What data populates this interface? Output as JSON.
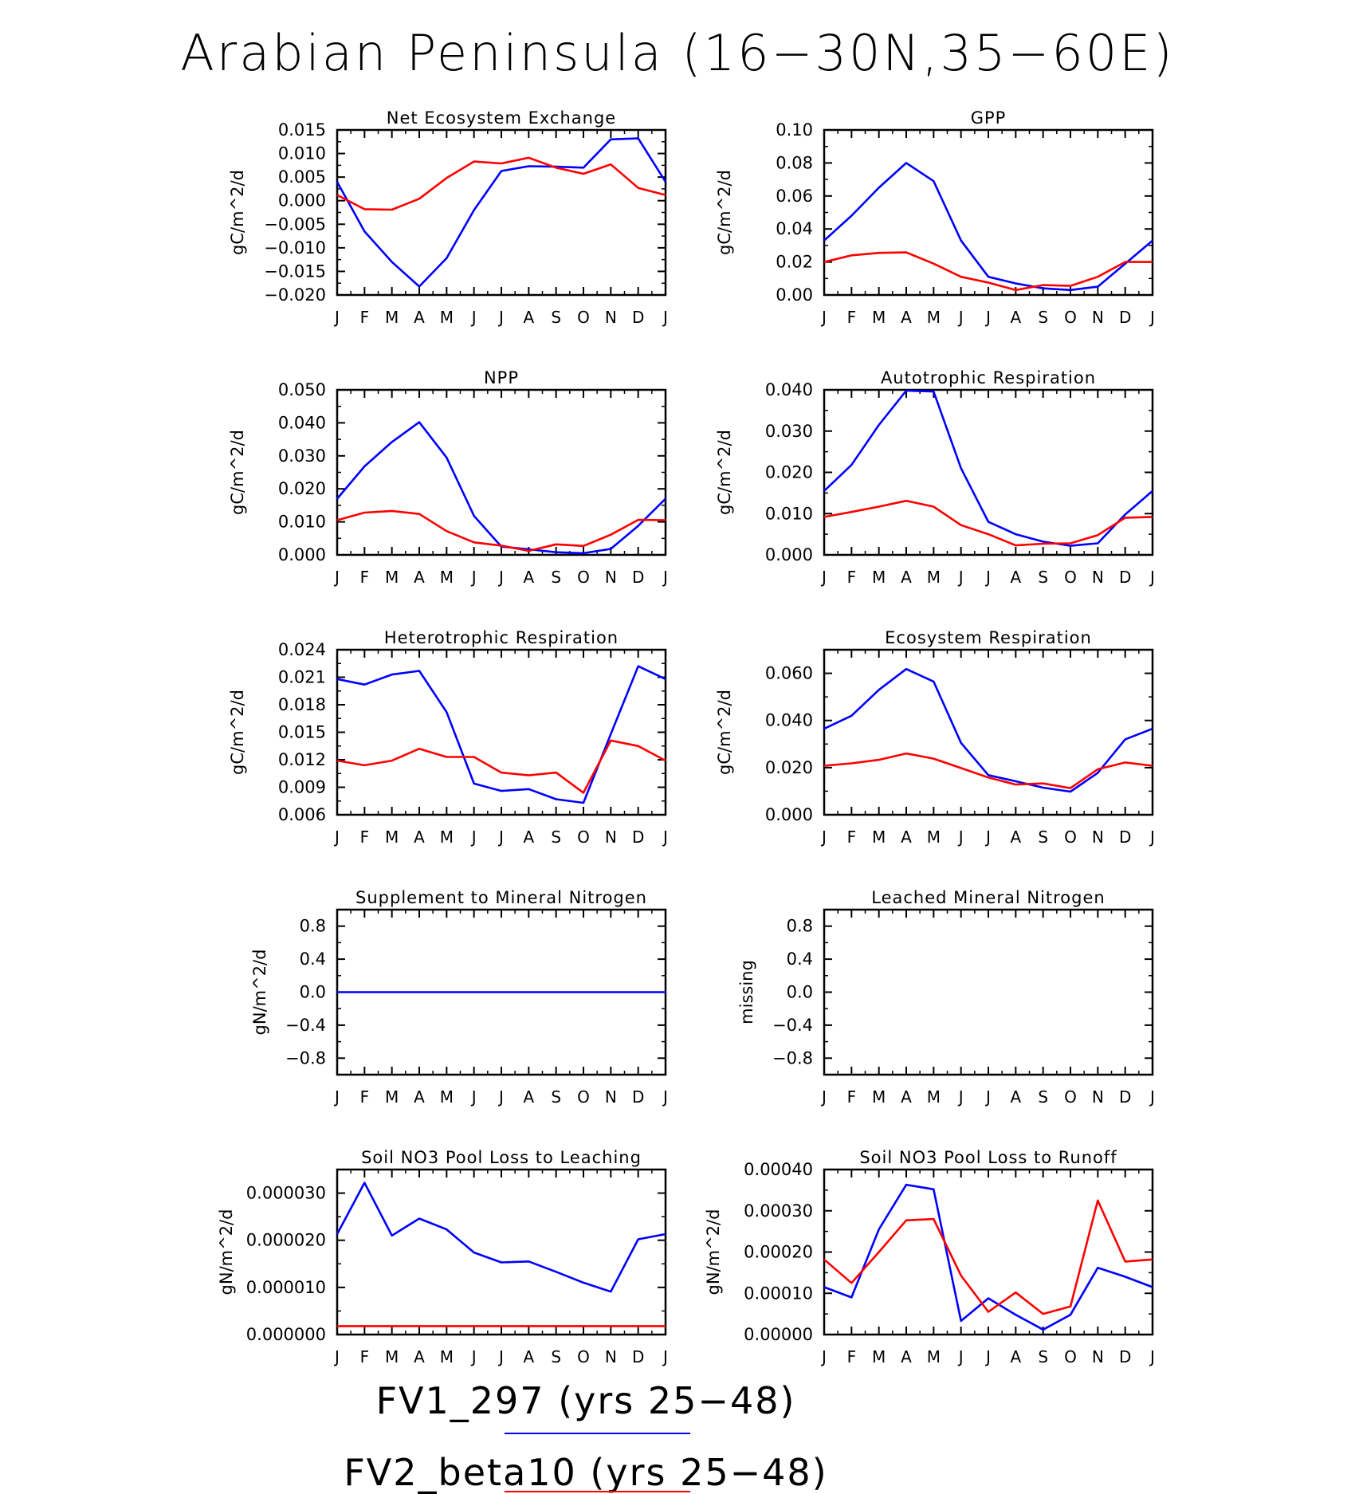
{
  "title": "Arabian Peninsula (16−30N,35−60E)",
  "colors": {
    "series1": "#0000ff",
    "series2": "#ff0000"
  },
  "legend": [
    {
      "label": "FV1_297 (yrs 25−48)",
      "color": "#0000ff"
    },
    {
      "label": "FV2_beta10 (yrs 25−48)",
      "color": "#ff0000"
    }
  ],
  "chart_data": [
    {
      "type": "line",
      "title": "Net Ecosystem Exchange",
      "ylabel": "gC/m^2/d",
      "categories": [
        "J",
        "F",
        "M",
        "A",
        "M",
        "J",
        "J",
        "A",
        "S",
        "O",
        "N",
        "D",
        "J"
      ],
      "ylim": [
        -0.02,
        0.015
      ],
      "yticks": [
        "0.015",
        "0.010",
        "0.005",
        "0.000",
        "−0.005",
        "−0.010",
        "−0.015",
        "−0.020"
      ],
      "ytick_values": [
        0.015,
        0.01,
        0.005,
        0.0,
        -0.005,
        -0.01,
        -0.015,
        -0.02
      ],
      "series": [
        {
          "name": "FV1_297 (yrs 25−48)",
          "color": "#0000ff",
          "values": [
            0.004,
            -0.0065,
            -0.013,
            -0.0182,
            -0.0122,
            -0.002,
            0.0063,
            0.0073,
            0.0072,
            0.007,
            0.013,
            0.0132,
            0.004
          ]
        },
        {
          "name": "FV2_beta10 (yrs 25−48)",
          "color": "#ff0000",
          "values": [
            0.0012,
            -0.0018,
            -0.0019,
            0.0004,
            0.0048,
            0.0083,
            0.0079,
            0.0091,
            0.007,
            0.0057,
            0.0077,
            0.0027,
            0.0012
          ]
        }
      ]
    },
    {
      "type": "line",
      "title": "GPP",
      "ylabel": "gC/m^2/d",
      "categories": [
        "J",
        "F",
        "M",
        "A",
        "M",
        "J",
        "J",
        "A",
        "S",
        "O",
        "N",
        "D",
        "J"
      ],
      "ylim": [
        0,
        0.1
      ],
      "yticks": [
        "0.10",
        "0.08",
        "0.06",
        "0.04",
        "0.02",
        "0.00"
      ],
      "ytick_values": [
        0.1,
        0.08,
        0.06,
        0.04,
        0.02,
        0.0
      ],
      "series": [
        {
          "name": "FV1_297 (yrs 25−48)",
          "color": "#0000ff",
          "values": [
            0.033,
            0.048,
            0.065,
            0.08,
            0.069,
            0.033,
            0.011,
            0.007,
            0.004,
            0.003,
            0.005,
            0.019,
            0.033
          ]
        },
        {
          "name": "FV2_beta10 (yrs 25−48)",
          "color": "#ff0000",
          "values": [
            0.02,
            0.024,
            0.0255,
            0.0258,
            0.019,
            0.011,
            0.0075,
            0.003,
            0.006,
            0.0055,
            0.011,
            0.02,
            0.02
          ]
        }
      ]
    },
    {
      "type": "line",
      "title": "NPP",
      "ylabel": "gC/m^2/d",
      "categories": [
        "J",
        "F",
        "M",
        "A",
        "M",
        "J",
        "J",
        "A",
        "S",
        "O",
        "N",
        "D",
        "J"
      ],
      "ylim": [
        0,
        0.05
      ],
      "yticks": [
        "0.050",
        "0.040",
        "0.030",
        "0.020",
        "0.010",
        "0.000"
      ],
      "ytick_values": [
        0.05,
        0.04,
        0.03,
        0.02,
        0.01,
        0.0
      ],
      "series": [
        {
          "name": "FV1_297 (yrs 25−48)",
          "color": "#0000ff",
          "values": [
            0.017,
            0.0268,
            0.0342,
            0.0402,
            0.0295,
            0.0118,
            0.0025,
            0.0017,
            0.0008,
            0.0005,
            0.0018,
            0.0088,
            0.017
          ]
        },
        {
          "name": "FV2_beta10 (yrs 25−48)",
          "color": "#ff0000",
          "values": [
            0.0105,
            0.0128,
            0.0133,
            0.0124,
            0.0072,
            0.0038,
            0.0028,
            0.0012,
            0.0032,
            0.0027,
            0.0061,
            0.0106,
            0.0105
          ]
        }
      ]
    },
    {
      "type": "line",
      "title": "Autotrophic Respiration",
      "ylabel": "gC/m^2/d",
      "categories": [
        "J",
        "F",
        "M",
        "A",
        "M",
        "J",
        "J",
        "A",
        "S",
        "O",
        "N",
        "D",
        "J"
      ],
      "ylim": [
        0,
        0.04
      ],
      "yticks": [
        "0.040",
        "0.030",
        "0.020",
        "0.010",
        "0.000"
      ],
      "ytick_values": [
        0.04,
        0.03,
        0.02,
        0.01,
        0.0
      ],
      "series": [
        {
          "name": "FV1_297 (yrs 25−48)",
          "color": "#0000ff",
          "values": [
            0.0155,
            0.0218,
            0.0315,
            0.0398,
            0.0396,
            0.021,
            0.008,
            0.005,
            0.0032,
            0.0022,
            0.0028,
            0.0098,
            0.0155
          ]
        },
        {
          "name": "FV2_beta10 (yrs 25−48)",
          "color": "#ff0000",
          "values": [
            0.0092,
            0.0104,
            0.0117,
            0.0131,
            0.0117,
            0.0072,
            0.005,
            0.0023,
            0.0027,
            0.0028,
            0.0048,
            0.009,
            0.0092
          ]
        }
      ]
    },
    {
      "type": "line",
      "title": "Heterotrophic Respiration",
      "ylabel": "gC/m^2/d",
      "categories": [
        "J",
        "F",
        "M",
        "A",
        "M",
        "J",
        "J",
        "A",
        "S",
        "O",
        "N",
        "D",
        "J"
      ],
      "ylim": [
        0.006,
        0.024
      ],
      "yticks": [
        "0.024",
        "0.021",
        "0.018",
        "0.015",
        "0.012",
        "0.009",
        "0.006"
      ],
      "ytick_values": [
        0.024,
        0.021,
        0.018,
        0.015,
        0.012,
        0.009,
        0.006
      ],
      "series": [
        {
          "name": "FV1_297 (yrs 25−48)",
          "color": "#0000ff",
          "values": [
            0.0208,
            0.0202,
            0.0213,
            0.0217,
            0.0172,
            0.0094,
            0.0086,
            0.0088,
            0.0077,
            0.0073,
            0.0148,
            0.0222,
            0.0208
          ]
        },
        {
          "name": "FV2_beta10 (yrs 25−48)",
          "color": "#ff0000",
          "values": [
            0.0119,
            0.0114,
            0.0119,
            0.0132,
            0.0123,
            0.0123,
            0.0106,
            0.0103,
            0.0106,
            0.0084,
            0.0141,
            0.0135,
            0.0119
          ]
        }
      ]
    },
    {
      "type": "line",
      "title": "Ecosystem Respiration",
      "ylabel": "gC/m^2/d",
      "categories": [
        "J",
        "F",
        "M",
        "A",
        "M",
        "J",
        "J",
        "A",
        "S",
        "O",
        "N",
        "D",
        "J"
      ],
      "ylim": [
        0,
        0.07
      ],
      "yticks": [
        "0.060",
        "0.040",
        "0.020",
        "0.000"
      ],
      "ytick_values": [
        0.06,
        0.04,
        0.02,
        0.0
      ],
      "series": [
        {
          "name": "FV1_297 (yrs 25−48)",
          "color": "#0000ff",
          "values": [
            0.0365,
            0.042,
            0.053,
            0.0618,
            0.0565,
            0.0305,
            0.0168,
            0.0142,
            0.0115,
            0.0098,
            0.0178,
            0.032,
            0.0365
          ]
        },
        {
          "name": "FV2_beta10 (yrs 25−48)",
          "color": "#ff0000",
          "values": [
            0.0208,
            0.0218,
            0.0233,
            0.026,
            0.0238,
            0.0198,
            0.0158,
            0.0128,
            0.0133,
            0.0113,
            0.0193,
            0.0222,
            0.0208
          ]
        }
      ]
    },
    {
      "type": "line",
      "title": "Supplement to Mineral Nitrogen",
      "ylabel": "gN/m^2/d",
      "categories": [
        "J",
        "F",
        "M",
        "A",
        "M",
        "J",
        "J",
        "A",
        "S",
        "O",
        "N",
        "D",
        "J"
      ],
      "ylim": [
        -1,
        1
      ],
      "yticks": [
        "0.8",
        "0.4",
        "0.0",
        "−0.4",
        "−0.8"
      ],
      "ytick_values": [
        0.8,
        0.4,
        0.0,
        -0.4,
        -0.8
      ],
      "series": [
        {
          "name": "FV1_297 (yrs 25−48)",
          "color": "#0000ff",
          "values": [
            0,
            0,
            0,
            0,
            0,
            0,
            0,
            0,
            0,
            0,
            0,
            0,
            0
          ]
        }
      ]
    },
    {
      "type": "line",
      "title": "Leached Mineral Nitrogen",
      "ylabel": "missing",
      "categories": [
        "J",
        "F",
        "M",
        "A",
        "M",
        "J",
        "J",
        "A",
        "S",
        "O",
        "N",
        "D",
        "J"
      ],
      "ylim": [
        -1,
        1
      ],
      "yticks": [
        "0.8",
        "0.4",
        "0.0",
        "−0.4",
        "−0.8"
      ],
      "ytick_values": [
        0.8,
        0.4,
        0.0,
        -0.4,
        -0.8
      ],
      "series": []
    },
    {
      "type": "line",
      "title": "Soil NO3 Pool Loss to Leaching",
      "ylabel": "gN/m^2/d",
      "categories": [
        "J",
        "F",
        "M",
        "A",
        "M",
        "J",
        "J",
        "A",
        "S",
        "O",
        "N",
        "D",
        "J"
      ],
      "ylim": [
        0,
        3.5e-05
      ],
      "yticks": [
        "0.000030",
        "0.000020",
        "0.000010",
        "0.000000"
      ],
      "ytick_values": [
        3e-05,
        2e-05,
        1e-05,
        0.0
      ],
      "series": [
        {
          "name": "FV1_297 (yrs 25−48)",
          "color": "#0000ff",
          "values": [
            2.13e-05,
            3.22e-05,
            2.1e-05,
            2.46e-05,
            2.23e-05,
            1.74e-05,
            1.53e-05,
            1.55e-05,
            1.33e-05,
            1.1e-05,
            9.1e-06,
            2.02e-05,
            2.13e-05
          ]
        },
        {
          "name": "FV2_beta10 (yrs 25−48)",
          "color": "#ff0000",
          "values": [
            1.8e-06,
            1.8e-06,
            1.8e-06,
            1.8e-06,
            1.8e-06,
            1.8e-06,
            1.8e-06,
            1.8e-06,
            1.8e-06,
            1.8e-06,
            1.8e-06,
            1.8e-06,
            1.8e-06
          ]
        }
      ]
    },
    {
      "type": "line",
      "title": "Soil NO3 Pool Loss to Runoff",
      "ylabel": "gN/m^2/d",
      "categories": [
        "J",
        "F",
        "M",
        "A",
        "M",
        "J",
        "J",
        "A",
        "S",
        "O",
        "N",
        "D",
        "J"
      ],
      "ylim": [
        0,
        0.0004
      ],
      "yticks": [
        "0.00040",
        "0.00030",
        "0.00020",
        "0.00010",
        "0.00000"
      ],
      "ytick_values": [
        0.0004,
        0.0003,
        0.0002,
        0.0001,
        0
      ],
      "series": [
        {
          "name": "FV1_297 (yrs 25−48)",
          "color": "#0000ff",
          "values": [
            0.000115,
            9e-05,
            0.000255,
            0.000363,
            0.000352,
            3.3e-05,
            8.8e-05,
            4.8e-05,
            1.2e-05,
            4.8e-05,
            0.000162,
            0.00014,
            0.000115
          ]
        },
        {
          "name": "FV2_beta10 (yrs 25−48)",
          "color": "#ff0000",
          "values": [
            0.000182,
            0.000125,
            0.0002,
            0.000277,
            0.00028,
            0.000143,
            5.5e-05,
            0.000102,
            5e-05,
            6.8e-05,
            0.000325,
            0.000177,
            0.000182
          ]
        }
      ]
    }
  ]
}
